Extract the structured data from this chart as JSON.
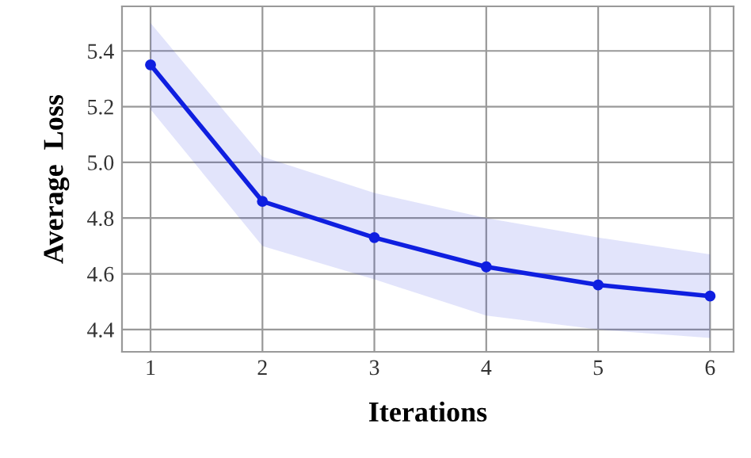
{
  "chart_data": {
    "type": "line",
    "xlabel": "Iterations",
    "ylabel": "Average  Loss",
    "x": [
      1,
      2,
      3,
      4,
      5,
      6
    ],
    "series": [
      {
        "color": "#0f1fe0",
        "values": [
          5.35,
          4.86,
          4.73,
          4.625,
          4.56,
          4.52
        ],
        "lower": [
          5.19,
          4.7,
          4.58,
          4.45,
          4.4,
          4.37
        ],
        "upper": [
          5.5,
          5.02,
          4.89,
          4.8,
          4.73,
          4.67
        ]
      }
    ],
    "xlim": [
      0.745,
      6.21
    ],
    "ylim": [
      4.32,
      5.56
    ],
    "xticks": [
      1,
      2,
      3,
      4,
      5,
      6
    ],
    "yticks": [
      4.4,
      4.6,
      4.8,
      {
        "value": 5,
        "label": "5.0"
      },
      5.2,
      5.4
    ],
    "grid": true,
    "marker": "circle",
    "line_style": "solid"
  }
}
